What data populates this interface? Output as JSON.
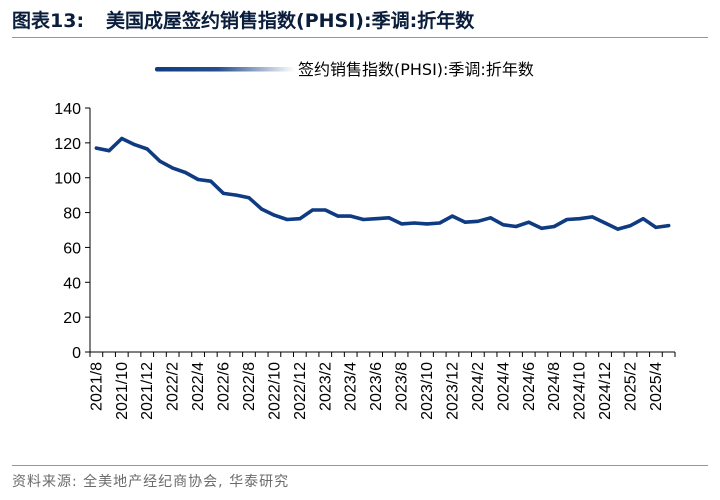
{
  "header": {
    "label": "图表13:",
    "title": "美国成屋签约销售指数(PHSI):季调:折年数"
  },
  "footer": {
    "source": "资料来源: 全美地产经纪商协会, 华泰研究"
  },
  "colors": {
    "line": "#0f3b82",
    "axis": "#000000",
    "rule": "#7a9cc8"
  },
  "chart_data": {
    "type": "line",
    "legend_position": "top",
    "grid": false,
    "ylim": [
      0,
      140
    ],
    "yticks": [
      0,
      20,
      40,
      60,
      80,
      100,
      120,
      140
    ],
    "x": [
      "2021/8",
      "2021/9",
      "2021/10",
      "2021/11",
      "2021/12",
      "2022/1",
      "2022/2",
      "2022/3",
      "2022/4",
      "2022/5",
      "2022/6",
      "2022/7",
      "2022/8",
      "2022/9",
      "2022/10",
      "2022/11",
      "2022/12",
      "2023/1",
      "2023/2",
      "2023/3",
      "2023/4",
      "2023/5",
      "2023/6",
      "2023/7",
      "2023/8",
      "2023/9",
      "2023/10",
      "2023/11",
      "2023/12",
      "2024/1",
      "2024/2",
      "2024/3",
      "2024/4",
      "2024/5",
      "2024/6",
      "2024/7",
      "2024/8",
      "2024/9",
      "2024/10",
      "2024/11",
      "2024/12",
      "2025/1",
      "2025/2",
      "2025/3",
      "2025/4",
      "2025/5"
    ],
    "xtick_labels": [
      "2021/8",
      "2021/10",
      "2021/12",
      "2022/2",
      "2022/4",
      "2022/6",
      "2022/8",
      "2022/10",
      "2022/12",
      "2023/2",
      "2023/4",
      "2023/6",
      "2023/8",
      "2023/10",
      "2023/12",
      "2024/2",
      "2024/4",
      "2024/6",
      "2024/8",
      "2024/10",
      "2024/12",
      "2025/2",
      "2025/4"
    ],
    "series": [
      {
        "name": "签约销售指数(PHSI):季调:折年数",
        "values": [
          117,
          115.5,
          122.5,
          119,
          116.5,
          109.5,
          105.5,
          103,
          99,
          98,
          91,
          90,
          88.5,
          82,
          78.5,
          76,
          76.5,
          81.5,
          81.5,
          78,
          78,
          76,
          76.5,
          77,
          73.5,
          74,
          73.5,
          74,
          78,
          74.5,
          75,
          77,
          73,
          72,
          74.5,
          71,
          72,
          76,
          76.5,
          77.5,
          74,
          70.5,
          72.5,
          76.5,
          71.5,
          72.5
        ]
      }
    ]
  }
}
